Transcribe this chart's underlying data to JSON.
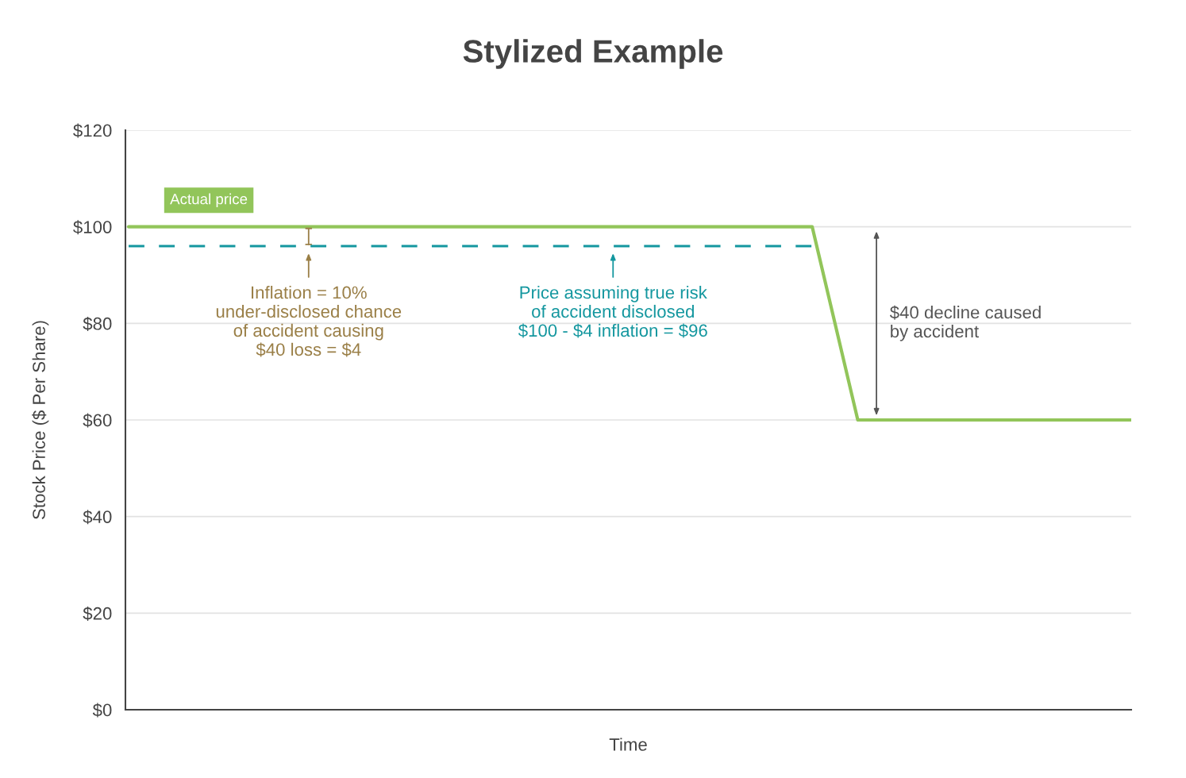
{
  "chart_data": {
    "type": "line",
    "title": "Stylized Example",
    "xlabel": "Time",
    "ylabel": "Stock Price ($ Per Share)",
    "categories": [
      null,
      null,
      null,
      null,
      null,
      null,
      null,
      null,
      null,
      null,
      null,
      null,
      null,
      null,
      null,
      null,
      null,
      null,
      null,
      null,
      null,
      null,
      null
    ],
    "ylim": [
      0,
      120
    ],
    "yticks": [
      {
        "value": 0,
        "label": "$0"
      },
      {
        "value": 20,
        "label": "$20"
      },
      {
        "value": 40,
        "label": "$40"
      },
      {
        "value": 60,
        "label": "$60"
      },
      {
        "value": 80,
        "label": "$80"
      },
      {
        "value": 100,
        "label": "$100"
      },
      {
        "value": 120,
        "label": "$120"
      }
    ],
    "grid": "y",
    "series": [
      {
        "name": "Actual price",
        "color": "#92c55a",
        "line_style": "solid",
        "values": [
          100,
          100,
          100,
          100,
          100,
          100,
          100,
          100,
          100,
          100,
          100,
          100,
          100,
          100,
          100,
          100,
          60,
          60,
          60,
          60,
          60,
          60,
          60
        ]
      },
      {
        "color": "#14979f",
        "line_style": "dashed",
        "values": [
          96,
          96,
          96,
          96,
          96,
          96,
          96,
          96,
          96,
          96,
          96,
          96,
          96,
          96,
          96,
          96,
          null,
          null,
          null,
          null,
          null,
          null,
          null
        ]
      }
    ],
    "annotations": [
      "Inflation = 10%\nunder-disclosed chance\nof accident causing\n$40 loss = $4",
      "Price assuming true risk\nof accident disclosed\n$100 - $4 inflation = $96",
      "$40 decline caused\nby accident"
    ]
  }
}
